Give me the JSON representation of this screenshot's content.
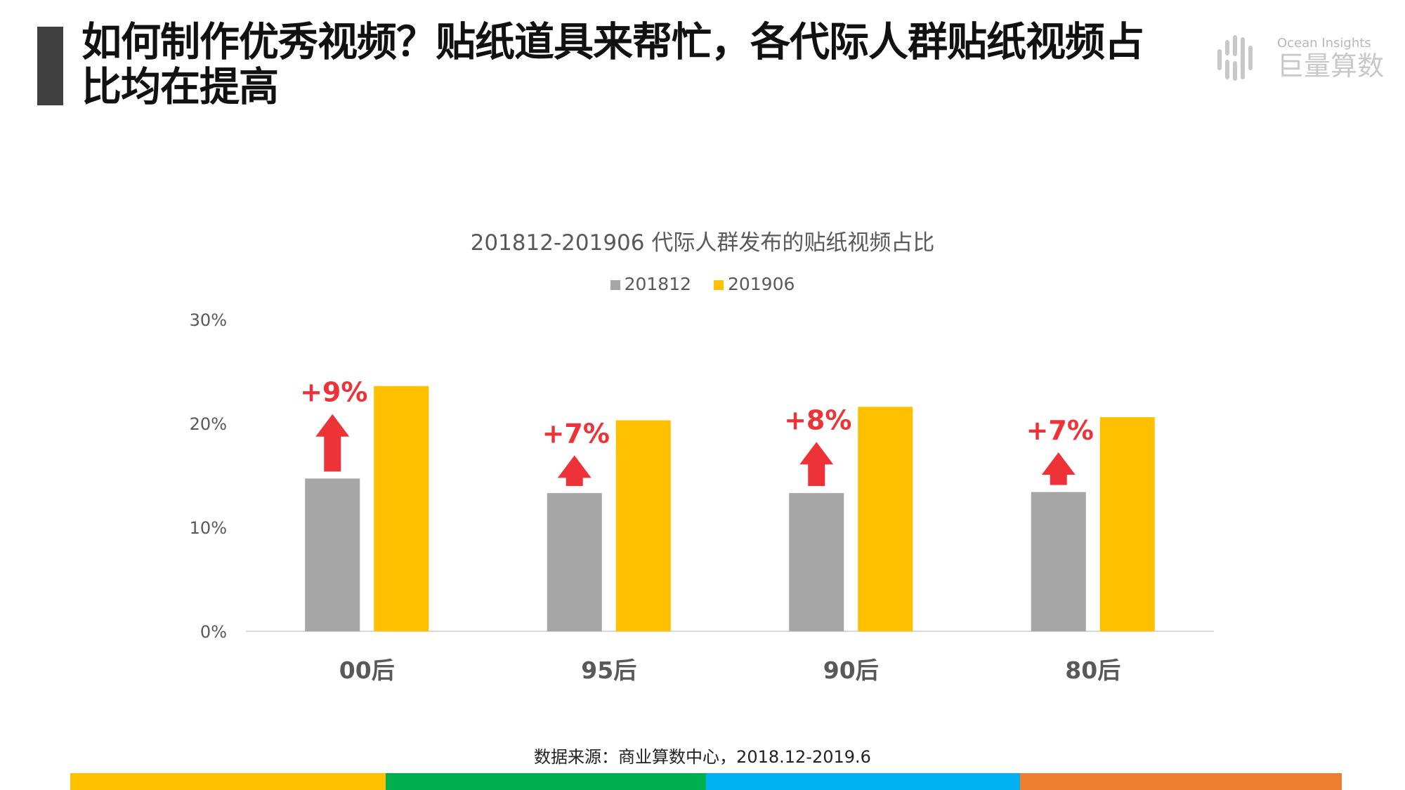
{
  "header": {
    "title": "如何制作优秀视频？贴纸道具来帮忙，各代际人群贴纸视频占比均在提高",
    "logo_text_en": "Ocean Insights",
    "logo_text_cn": "巨量算数"
  },
  "chart_data": {
    "type": "bar",
    "title": "201812-201906 代际人群发布的贴纸视频占比",
    "categories": [
      "00后",
      "95后",
      "90后",
      "80后"
    ],
    "series": [
      {
        "name": "201812",
        "color": "#A6A6A6",
        "values": [
          14.7,
          13.3,
          13.3,
          13.4
        ]
      },
      {
        "name": "201906",
        "color": "#FFC000",
        "values": [
          23.6,
          20.3,
          21.6,
          20.6
        ]
      }
    ],
    "annotations": [
      "+9%",
      "+7%",
      "+8%",
      "+7%"
    ],
    "annotation_color": "#EE3338",
    "yticks": [
      "0%",
      "10%",
      "20%",
      "30%"
    ],
    "ylim": [
      0,
      30
    ],
    "grid": false,
    "legend_position": "top"
  },
  "footer": {
    "source": "数据来源：商业算数中心，2018.12-2019.6",
    "color_bar": [
      "#FFC000",
      "#00B050",
      "#00B0F0",
      "#ED7D31"
    ]
  }
}
